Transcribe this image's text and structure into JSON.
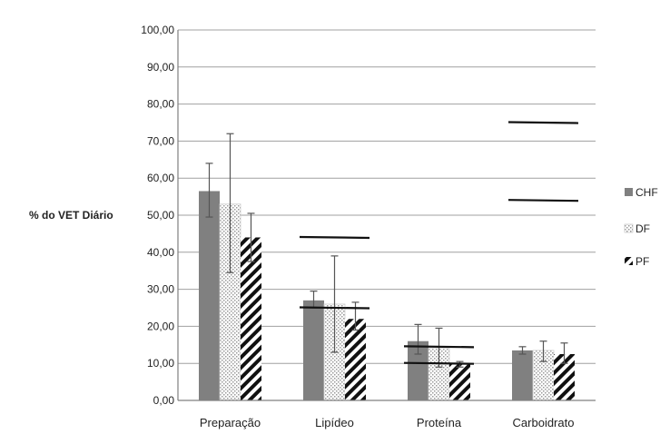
{
  "chart_data": {
    "type": "bar",
    "ylabel": "% do VET Diário",
    "ylim": [
      0,
      100
    ],
    "ytick_labels": [
      "0,00",
      "10,00",
      "20,00",
      "30,00",
      "40,00",
      "50,00",
      "60,00",
      "70,00",
      "80,00",
      "90,00",
      "100,00"
    ],
    "categories": [
      "Preparação",
      "Lipídeo",
      "Proteína",
      "Carboidrato"
    ],
    "series": [
      {
        "name": "CHF",
        "values": [
          56.5,
          27.0,
          16.0,
          13.5
        ],
        "err_low": [
          49.5,
          25.0,
          12.5,
          12.5
        ],
        "err_high": [
          64.0,
          29.5,
          20.5,
          14.5
        ],
        "fill": "#808080"
      },
      {
        "name": "DF",
        "values": [
          53.0,
          26.0,
          14.0,
          13.5
        ],
        "err_low": [
          34.5,
          13.0,
          9.0,
          10.5
        ],
        "err_high": [
          72.0,
          39.0,
          19.5,
          16.0
        ],
        "fill": "dots"
      },
      {
        "name": "PF",
        "values": [
          44.0,
          22.0,
          10.0,
          12.5
        ],
        "err_low": [
          37.5,
          19.0,
          9.0,
          10.0
        ],
        "err_high": [
          50.5,
          26.5,
          10.5,
          15.5
        ],
        "fill": "stripes"
      }
    ],
    "reference_lines": [
      {
        "category": "Lipídeo",
        "values": [
          44.0,
          25.0
        ]
      },
      {
        "category": "Proteína",
        "values": [
          14.5,
          10.0
        ]
      },
      {
        "category": "Carboidrato",
        "values": [
          75.0,
          54.0
        ]
      }
    ],
    "legend_position": "right",
    "grid": true,
    "colors": {
      "axis": "#808080",
      "grid": "#a0a0a0",
      "bar_dark": "#808080",
      "stroke": "#000000"
    }
  }
}
